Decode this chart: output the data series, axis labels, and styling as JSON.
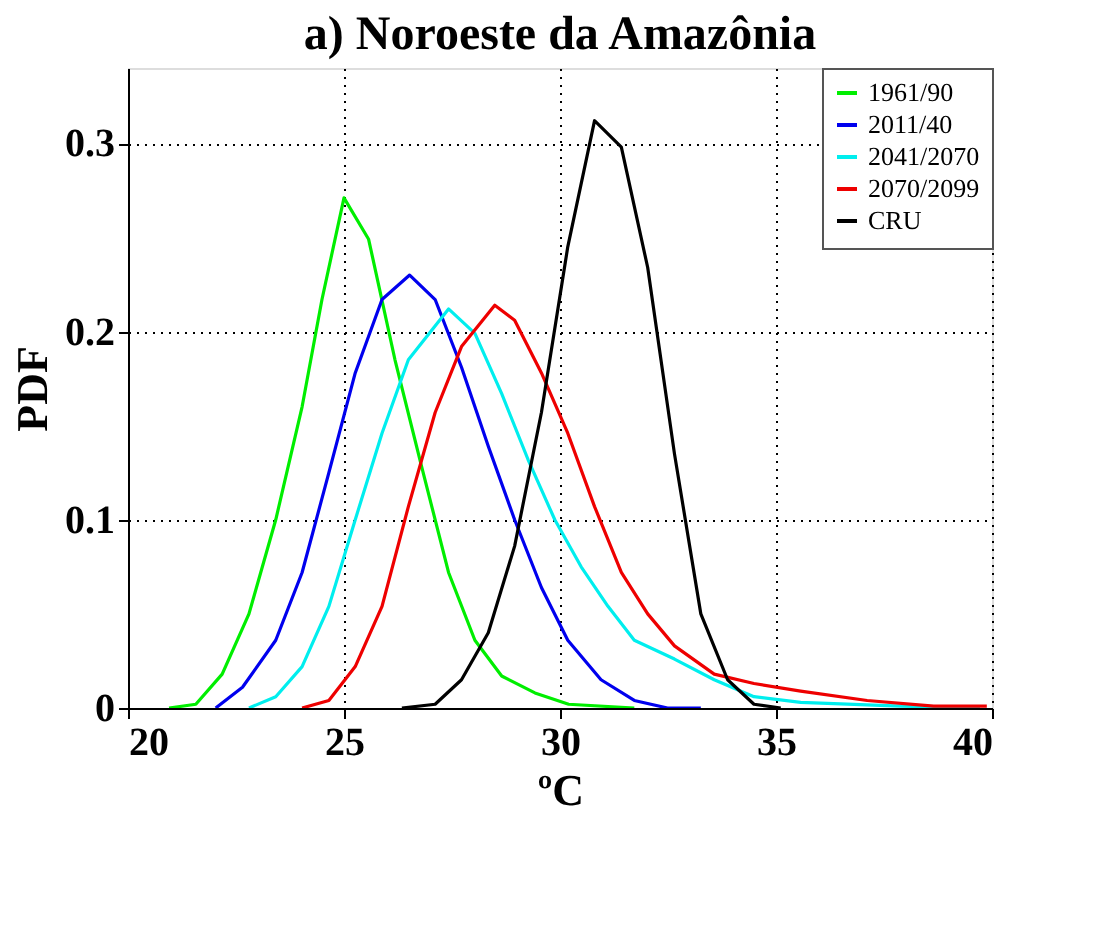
{
  "chart_data": {
    "type": "line",
    "title": "a) Noroeste da Amazônia",
    "xlabel": "ºC",
    "ylabel": "PDF",
    "xlim": [
      20,
      40
    ],
    "xticks": [
      20,
      25,
      30,
      35,
      40
    ],
    "ylim": [
      0,
      0.34
    ],
    "yticks": [
      0,
      0.1,
      0.2,
      0.3
    ],
    "grid": true,
    "legend": "top right",
    "marker": "none",
    "line_style": "solid",
    "series": [
      {
        "name": "1961/90",
        "color": "#00ee00",
        "x": [
          20.95,
          21.57,
          22.18,
          22.8,
          23.42,
          24.03,
          24.49,
          25.0,
          25.57,
          26.18,
          26.8,
          27.42,
          28.03,
          28.65,
          29.42,
          30.2,
          31.72
        ],
        "values": [
          0,
          0.002,
          0.018,
          0.05,
          0.1,
          0.16,
          0.217,
          0.271,
          0.249,
          0.185,
          0.128,
          0.072,
          0.036,
          0.017,
          0.008,
          0.002,
          0
        ]
      },
      {
        "name": "2011/40",
        "color": "#0000ee",
        "x": [
          22.03,
          22.65,
          23.42,
          24.03,
          24.65,
          25.26,
          25.88,
          26.52,
          27.11,
          27.72,
          28.34,
          28.95,
          29.57,
          30.18,
          30.95,
          31.72,
          32.49,
          33.26
        ],
        "values": [
          0,
          0.011,
          0.036,
          0.072,
          0.125,
          0.178,
          0.217,
          0.23,
          0.217,
          0.181,
          0.139,
          0.1,
          0.064,
          0.036,
          0.015,
          0.004,
          0,
          0
        ]
      },
      {
        "name": "2041/2070",
        "color": "#00eeee",
        "x": [
          22.8,
          23.42,
          24.03,
          24.65,
          25.26,
          25.88,
          26.49,
          27.42,
          28.03,
          28.65,
          29.26,
          29.88,
          30.49,
          31.11,
          31.72,
          32.65,
          33.57,
          34.49,
          35.57,
          37.88,
          39.72
        ],
        "values": [
          0,
          0.006,
          0.022,
          0.054,
          0.1,
          0.146,
          0.185,
          0.212,
          0.199,
          0.167,
          0.132,
          0.1,
          0.075,
          0.054,
          0.036,
          0.026,
          0.015,
          0.006,
          0.003,
          0.001,
          0
        ]
      },
      {
        "name": "2070/2099",
        "color": "#ee0000",
        "x": [
          24.03,
          24.65,
          25.26,
          25.88,
          26.49,
          27.11,
          27.72,
          28.49,
          28.95,
          29.57,
          30.18,
          30.8,
          31.42,
          32.03,
          32.65,
          33.57,
          34.49,
          35.57,
          37.11,
          38.65,
          39.88
        ],
        "values": [
          0,
          0.004,
          0.022,
          0.054,
          0.107,
          0.157,
          0.192,
          0.214,
          0.206,
          0.178,
          0.146,
          0.107,
          0.072,
          0.05,
          0.033,
          0.018,
          0.013,
          0.009,
          0.004,
          0.001,
          0.001
        ]
      },
      {
        "name": "CRU",
        "color": "#000000",
        "x": [
          26.34,
          27.11,
          27.72,
          28.34,
          28.95,
          29.57,
          30.18,
          30.8,
          31.42,
          32.03,
          32.65,
          33.26,
          33.88,
          34.49,
          35.11
        ],
        "values": [
          0,
          0.002,
          0.015,
          0.04,
          0.086,
          0.157,
          0.245,
          0.312,
          0.298,
          0.234,
          0.135,
          0.05,
          0.015,
          0.002,
          0
        ]
      }
    ]
  }
}
